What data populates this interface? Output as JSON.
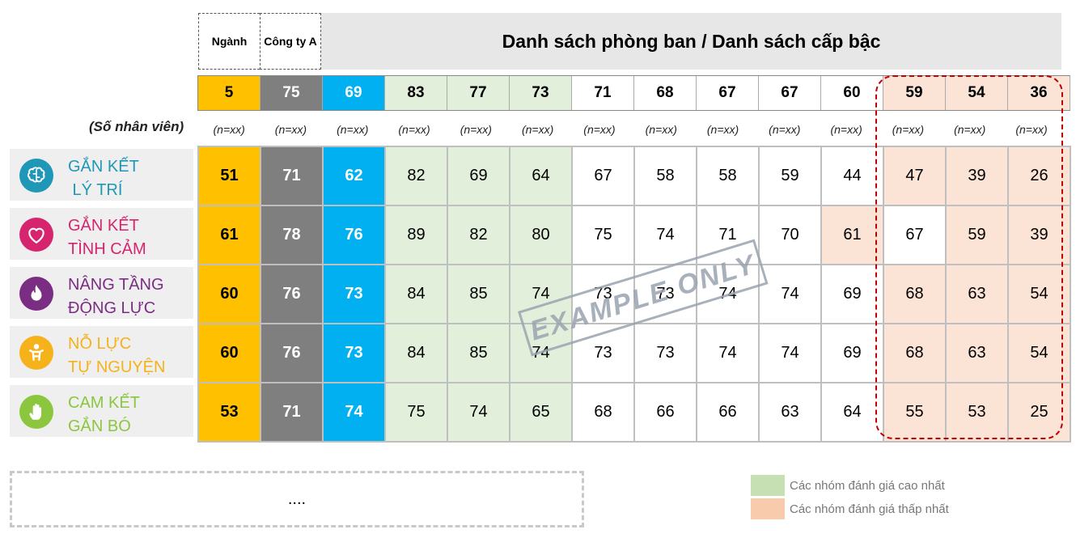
{
  "header": {
    "industry": "Ngành",
    "company": "Công ty A",
    "departments_title": "Danh sách phòng ban / Danh sách cấp bậc"
  },
  "counts": [
    "5",
    "75",
    "69",
    "83",
    "77",
    "73",
    "71",
    "68",
    "67",
    "67",
    "60",
    "59",
    "54",
    "36"
  ],
  "n_label": "(Số nhân viên)",
  "n_values": [
    "(n=xx)",
    "(n=xx)",
    "(n=xx)",
    "(n=xx)",
    "(n=xx)",
    "(n=xx)",
    "(n=xx)",
    "(n=xx)",
    "(n=xx)",
    "(n=xx)",
    "(n=xx)",
    "(n=xx)",
    "(n=xx)",
    "(n=xx)"
  ],
  "factors": [
    {
      "label": "GẮN KẾT\n LÝ TRÍ",
      "icon": "brain-icon",
      "color": "#1f97b7"
    },
    {
      "label": "GẮN KẾT\nTÌNH CẢM",
      "icon": "heart-icon",
      "color": "#d6246e"
    },
    {
      "label": "NÂNG TẦNG\nĐỘNG LỰC",
      "icon": "flame-icon",
      "color": "#7b2c83"
    },
    {
      "label": "NỖ LỰC\nTỰ NGUYỆN",
      "icon": "person-icon",
      "color": "#f5b21b"
    },
    {
      "label": "CAM KẾT\nGẮN BÓ",
      "icon": "hand-icon",
      "color": "#8cc63f"
    }
  ],
  "rows": [
    [
      "51",
      "71",
      "62",
      "82",
      "69",
      "64",
      "67",
      "58",
      "58",
      "59",
      "44",
      "47",
      "39",
      "26"
    ],
    [
      "61",
      "78",
      "76",
      "89",
      "82",
      "80",
      "75",
      "74",
      "71",
      "70",
      "61",
      "67",
      "59",
      "39"
    ],
    [
      "60",
      "76",
      "73",
      "84",
      "85",
      "74",
      "73",
      "73",
      "74",
      "74",
      "69",
      "68",
      "63",
      "54"
    ],
    [
      "60",
      "76",
      "73",
      "84",
      "85",
      "74",
      "73",
      "73",
      "74",
      "74",
      "69",
      "68",
      "63",
      "54"
    ],
    [
      "53",
      "71",
      "74",
      "75",
      "74",
      "65",
      "68",
      "66",
      "66",
      "63",
      "64",
      "55",
      "53",
      "25"
    ]
  ],
  "colors": {
    "industry": "#ffc000",
    "company": "#7f7f7f",
    "company_dept": "#00b0f0",
    "highest": "#e2efda",
    "lowest": "#fbe4d5",
    "highlight_frame": "#c00000"
  },
  "watermark": "EXAMPLE ONLY",
  "more_placeholder": "....",
  "legend": [
    {
      "label": "Các nhóm đánh giá cao nhất",
      "color": "#c6e0b4"
    },
    {
      "label": "Các nhóm đánh giá thấp nhất",
      "color": "#f8cbad"
    }
  ]
}
